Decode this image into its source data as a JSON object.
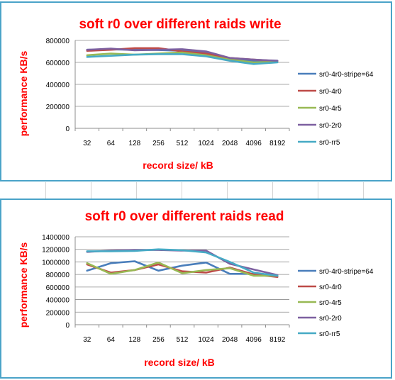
{
  "chart_data": [
    {
      "type": "line",
      "title": "soft r0 over different raids write",
      "xlabel": "record size/ kB",
      "ylabel": "performance KB/s",
      "categories": [
        "32",
        "64",
        "128",
        "256",
        "512",
        "1024",
        "2048",
        "4096",
        "8192"
      ],
      "ylim": [
        0,
        800000
      ],
      "yticks": [
        0,
        200000,
        400000,
        600000,
        800000
      ],
      "ytick_labels": [
        "0",
        "200000",
        "400000",
        "600000",
        "800000"
      ],
      "grid": "horizontal",
      "legend_position": "right",
      "series": [
        {
          "name": "sr0-4r0-stripe=64",
          "color": "#4a7ebb",
          "values": [
            715000,
            718000,
            715000,
            712000,
            705000,
            690000,
            630000,
            615000,
            615000
          ]
        },
        {
          "name": "sr0-4r0",
          "color": "#be4b48",
          "values": [
            705000,
            715000,
            730000,
            730000,
            700000,
            680000,
            640000,
            625000,
            612000
          ]
        },
        {
          "name": "sr0-4r5",
          "color": "#98b954",
          "values": [
            665000,
            680000,
            670000,
            680000,
            690000,
            665000,
            625000,
            600000,
            605000
          ]
        },
        {
          "name": "sr0-2r0",
          "color": "#7d60a0",
          "values": [
            715000,
            725000,
            710000,
            715000,
            720000,
            700000,
            640000,
            625000,
            615000
          ]
        },
        {
          "name": "sr0-rr5",
          "color": "#46aac5",
          "values": [
            650000,
            660000,
            670000,
            675000,
            675000,
            655000,
            615000,
            585000,
            600000
          ]
        }
      ]
    },
    {
      "type": "line",
      "title": "soft r0 over different raids read",
      "xlabel": "record size/ kB",
      "ylabel": "performance KB/s",
      "categories": [
        "32",
        "64",
        "128",
        "256",
        "512",
        "1024",
        "2048",
        "4096",
        "8192"
      ],
      "ylim": [
        0,
        1400000
      ],
      "yticks": [
        0,
        200000,
        400000,
        600000,
        800000,
        1000000,
        1200000,
        1400000
      ],
      "ytick_labels": [
        "0",
        "200000",
        "400000",
        "600000",
        "800000",
        "1000000",
        "1200000",
        "1400000"
      ],
      "grid": "horizontal",
      "legend_position": "right",
      "series": [
        {
          "name": "sr0-4r0-stripe=64",
          "color": "#4a7ebb",
          "values": [
            860000,
            980000,
            1010000,
            860000,
            940000,
            990000,
            810000,
            810000,
            770000
          ]
        },
        {
          "name": "sr0-4r0",
          "color": "#be4b48",
          "values": [
            960000,
            830000,
            870000,
            960000,
            850000,
            830000,
            910000,
            800000,
            760000
          ]
        },
        {
          "name": "sr0-4r5",
          "color": "#98b954",
          "values": [
            980000,
            810000,
            870000,
            990000,
            820000,
            870000,
            900000,
            780000,
            780000
          ]
        },
        {
          "name": "sr0-2r0",
          "color": "#7d60a0",
          "values": [
            1160000,
            1180000,
            1190000,
            1190000,
            1180000,
            1180000,
            970000,
            880000,
            790000
          ]
        },
        {
          "name": "sr0-rr5",
          "color": "#46aac5",
          "values": [
            1170000,
            1170000,
            1175000,
            1200000,
            1185000,
            1150000,
            1000000,
            830000,
            780000
          ]
        }
      ]
    }
  ]
}
